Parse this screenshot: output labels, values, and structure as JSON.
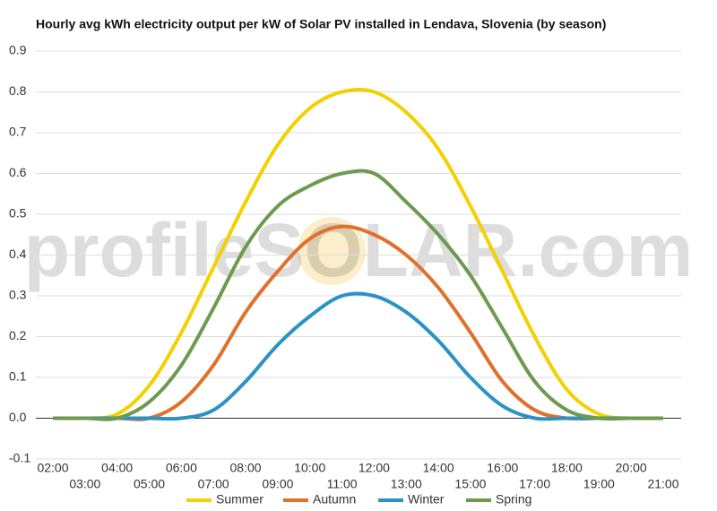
{
  "chart_data": {
    "type": "line",
    "title": "Hourly avg kWh electricity output per kW of Solar PV installed in Lendava, Slovenia (by season)",
    "watermark": "profileSOLAR.com",
    "categories": [
      "02:00",
      "03:00",
      "04:00",
      "05:00",
      "06:00",
      "07:00",
      "08:00",
      "09:00",
      "10:00",
      "11:00",
      "12:00",
      "13:00",
      "14:00",
      "15:00",
      "16:00",
      "17:00",
      "18:00",
      "19:00",
      "20:00",
      "21:00"
    ],
    "series": [
      {
        "name": "Summer",
        "color": "#f5d000",
        "values": [
          0,
          0,
          0.01,
          0.08,
          0.21,
          0.37,
          0.53,
          0.67,
          0.76,
          0.8,
          0.8,
          0.75,
          0.66,
          0.52,
          0.36,
          0.2,
          0.07,
          0.01,
          0,
          0
        ]
      },
      {
        "name": "Autumn",
        "color": "#e0702a",
        "values": [
          0,
          0,
          0,
          0,
          0.04,
          0.13,
          0.26,
          0.36,
          0.44,
          0.47,
          0.45,
          0.4,
          0.32,
          0.21,
          0.09,
          0.02,
          0,
          0,
          0,
          0
        ]
      },
      {
        "name": "Winter",
        "color": "#2b93c4",
        "values": [
          0,
          0,
          0,
          0,
          0,
          0.02,
          0.09,
          0.18,
          0.25,
          0.3,
          0.3,
          0.26,
          0.19,
          0.1,
          0.03,
          0,
          0,
          0,
          0,
          0
        ]
      },
      {
        "name": "Spring",
        "color": "#6e9a4f",
        "values": [
          0,
          0,
          0,
          0.04,
          0.13,
          0.27,
          0.42,
          0.52,
          0.57,
          0.6,
          0.6,
          0.53,
          0.45,
          0.35,
          0.22,
          0.09,
          0.02,
          0,
          0,
          0
        ]
      }
    ],
    "ylim": [
      -0.1,
      0.9
    ],
    "yticks": [
      -0.1,
      {
        "value": 0,
        "label": "0.0"
      },
      0.1,
      0.2,
      0.3,
      0.4,
      0.5,
      0.6,
      0.7,
      0.8,
      0.9
    ],
    "grid": true,
    "legend": "bottom"
  }
}
